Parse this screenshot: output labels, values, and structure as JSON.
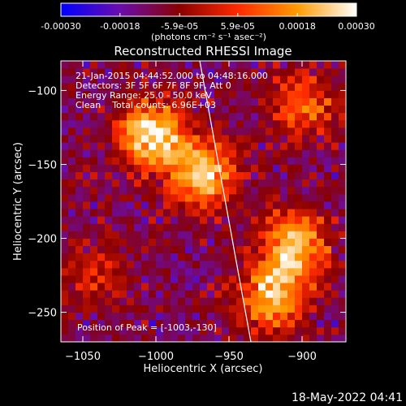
{
  "colorbar": {
    "tick_labels": [
      "-0.00030",
      "-0.00018",
      "-5.9e-05",
      "5.9e-05",
      "0.00018",
      "0.00030"
    ],
    "tick_values": [
      -0.0003,
      -0.00018,
      -5.9e-05,
      5.9e-05,
      0.00018,
      0.0003
    ],
    "range": [
      -0.0003,
      0.0003
    ],
    "units": "(photons cm⁻² s⁻¹ asec⁻²)",
    "colors": [
      "#0000ff",
      "#6a0dad",
      "#8a0000",
      "#ff2a00",
      "#ff9a00",
      "#ffffff"
    ]
  },
  "chart_data": {
    "type": "heatmap",
    "title": "Reconstructed RHESSI Image",
    "xlabel": "Heliocentric X (arcsec)",
    "ylabel": "Heliocentric Y (arcsec)",
    "xlim": [
      -1065,
      -870
    ],
    "ylim": [
      -270,
      -80
    ],
    "xticks": [
      -1050,
      -1000,
      -950,
      -900
    ],
    "yticks": [
      -100,
      -150,
      -200,
      -250
    ],
    "limb_line": [
      [
        -970,
        -80
      ],
      [
        -935,
        -270
      ]
    ],
    "info": {
      "time_range": "21-Jan-2015 04:44:52.000 to 04:48:16.000",
      "detectors": "Detectors: 3F 5F 6F 7F 8F 9F, Att 0",
      "energy_range": "Energy Range: 25.0 - 50.0 keV",
      "clean": "Clean    Total counts: 6.96E+03",
      "peak": "Position of Peak = [-1003,-130]"
    },
    "sources": [
      {
        "x": -1003,
        "y": -130,
        "peak": 1.0
      },
      {
        "x": -968,
        "y": -157,
        "peak": 0.85
      },
      {
        "x": -905,
        "y": -205,
        "peak": 0.85
      },
      {
        "x": -920,
        "y": -240,
        "peak": 0.8
      },
      {
        "x": -900,
        "y": -110,
        "peak": 0.55
      },
      {
        "x": -1040,
        "y": -225,
        "peak": 0.35
      }
    ]
  },
  "footer": {
    "date": "18-May-2022 04:41"
  }
}
